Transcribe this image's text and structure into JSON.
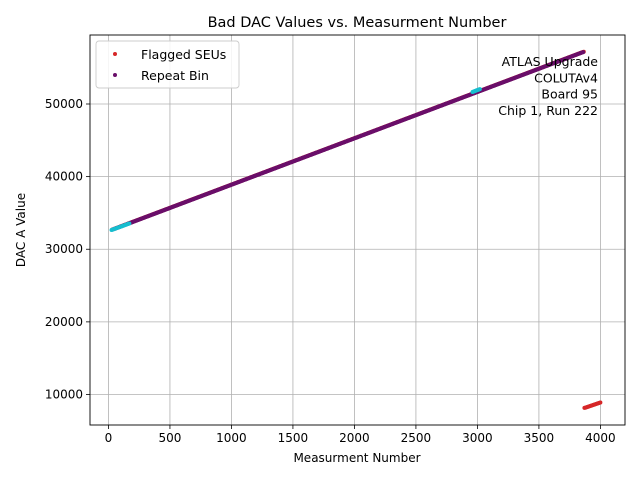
{
  "chart_data": {
    "type": "scatter",
    "title": "Bad DAC Values vs. Measurment Number",
    "xlabel": "Measurment Number",
    "ylabel": "DAC A Value",
    "xlim": [
      -150,
      4200
    ],
    "ylim": [
      5800,
      59500
    ],
    "xticks": [
      0,
      500,
      1000,
      1500,
      2000,
      2500,
      3000,
      3500,
      4000
    ],
    "yticks": [
      10000,
      20000,
      30000,
      40000,
      50000
    ],
    "grid": true,
    "legend_position": "top-left",
    "annotation": [
      "ATLAS Upgrade",
      "COLUTAv4",
      "Board 95",
      "Chip 1, Run 222"
    ],
    "annotation_position": "top-right",
    "series": [
      {
        "name": "Flagged SEUs",
        "color": "#d62728",
        "marker": "circle",
        "segments": [
          {
            "x_start": 30,
            "x_end": 3865,
            "y_start": 32700,
            "y_end": 57200
          },
          {
            "x_start": 3870,
            "x_end": 4000,
            "y_start": 8150,
            "y_end": 8900
          }
        ]
      },
      {
        "name": "Repeat Bin",
        "color": "#6a0f6a",
        "marker": "circle",
        "segments": [
          {
            "x_start": 40,
            "x_end": 3860,
            "y_start": 32750,
            "y_end": 57150
          }
        ]
      },
      {
        "name": "",
        "color": "#17becf",
        "marker": "circle",
        "legend": false,
        "segments": [
          {
            "x_start": 25,
            "x_end": 170,
            "y_start": 32650,
            "y_end": 33550
          },
          {
            "x_start": 2960,
            "x_end": 3020,
            "y_start": 51650,
            "y_end": 52050
          }
        ]
      }
    ]
  }
}
